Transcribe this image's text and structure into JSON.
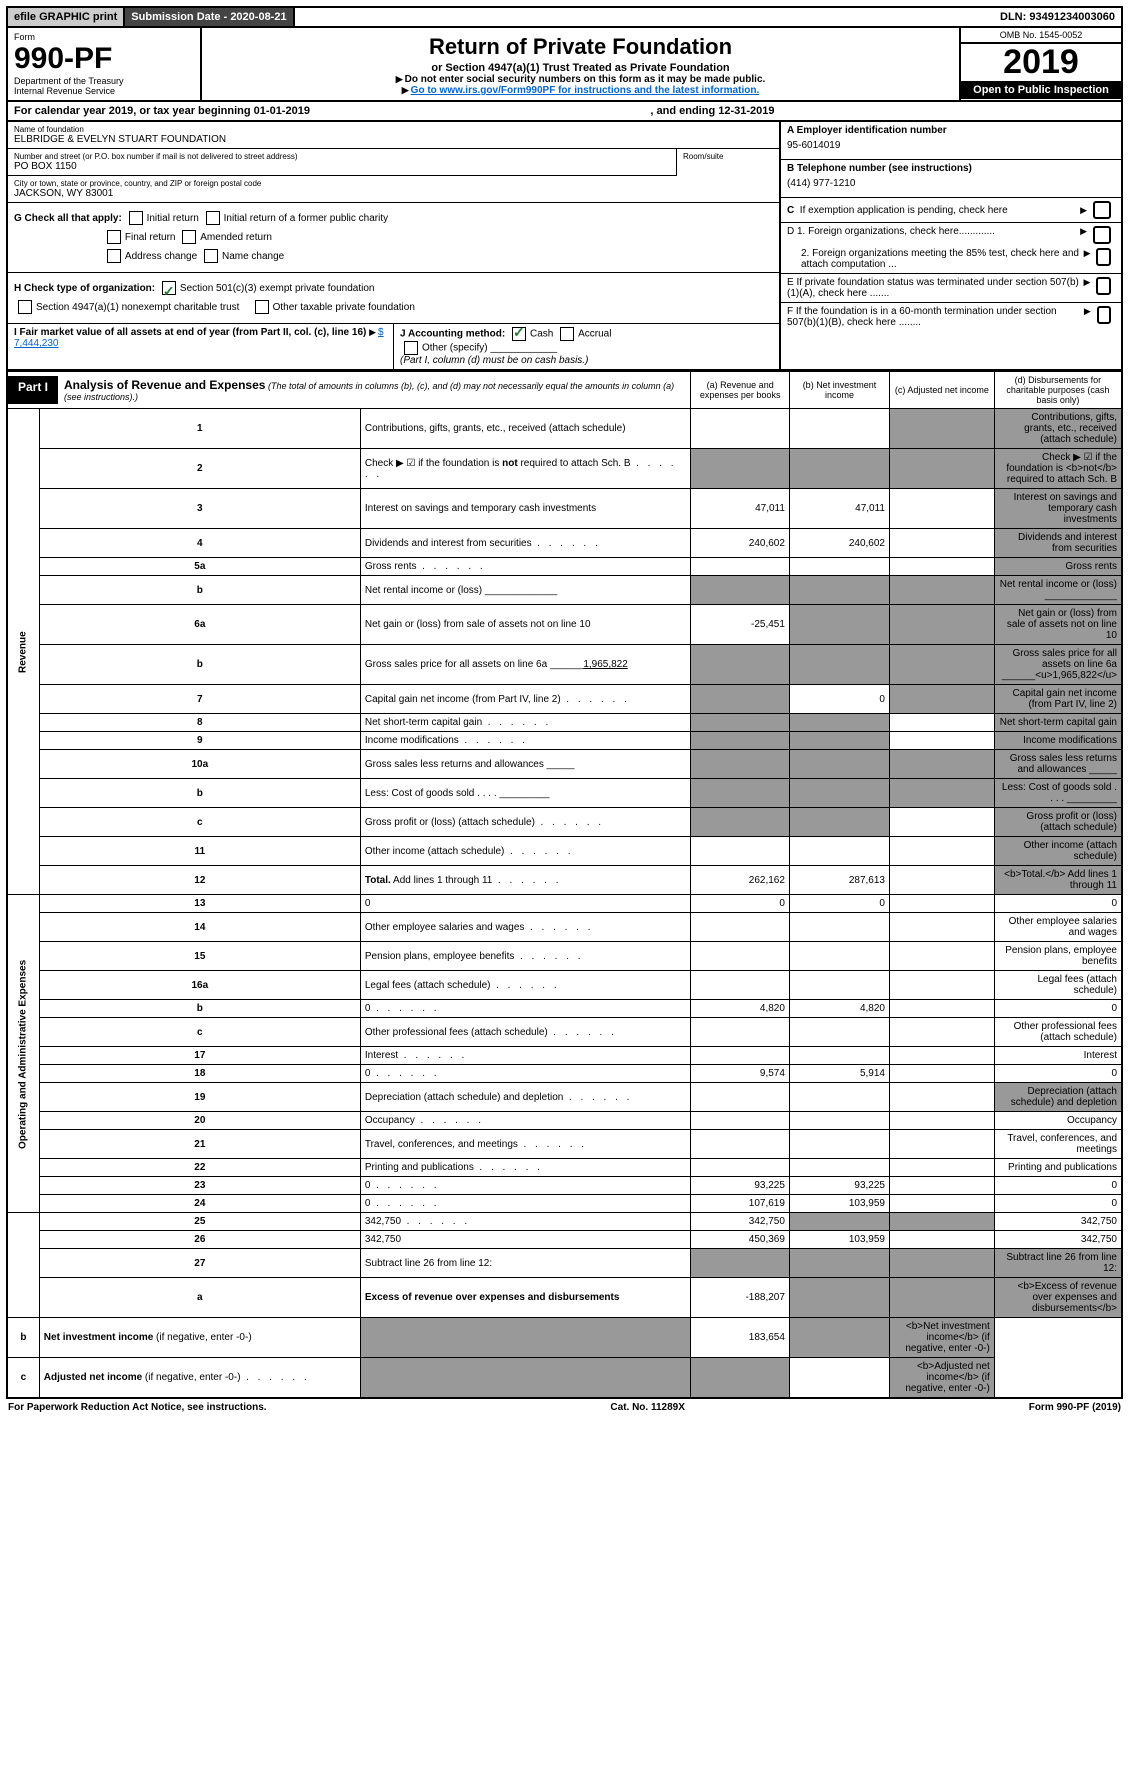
{
  "topbar": {
    "efile": "efile GRAPHIC print",
    "submission_label": "Submission Date - 2020-08-21",
    "dln": "DLN: 93491234003060"
  },
  "header": {
    "form_label": "Form",
    "form_number": "990-PF",
    "dept": "Department of the Treasury",
    "irs": "Internal Revenue Service",
    "title": "Return of Private Foundation",
    "subtitle": "or Section 4947(a)(1) Trust Treated as Private Foundation",
    "warn": "Do not enter social security numbers on this form as it may be made public.",
    "goto": "Go to www.irs.gov/Form990PF for instructions and the latest information.",
    "omb": "OMB No. 1545-0052",
    "year": "2019",
    "open": "Open to Public Inspection"
  },
  "calyear": {
    "prefix": "For calendar year 2019, or tax year beginning ",
    "begin": "01-01-2019",
    "mid": ", and ending ",
    "end": "12-31-2019"
  },
  "info": {
    "name_label": "Name of foundation",
    "name": "ELBRIDGE & EVELYN STUART FOUNDATION",
    "addr_label": "Number and street (or P.O. box number if mail is not delivered to street address)",
    "addr": "PO BOX 1150",
    "room_label": "Room/suite",
    "city_label": "City or town, state or province, country, and ZIP or foreign postal code",
    "city": "JACKSON, WY  83001",
    "a_label": "A Employer identification number",
    "a_val": "95-6014019",
    "b_label": "B Telephone number (see instructions)",
    "b_val": "(414) 977-1210",
    "c_label": "C  If exemption application is pending, check here",
    "d1": "D 1. Foreign organizations, check here.............",
    "d2": "2. Foreign organizations meeting the 85% test, check here and attach computation ...",
    "e_label": "E  If private foundation status was terminated under section 507(b)(1)(A), check here .......",
    "f_label": "F  If the foundation is in a 60-month termination under section 507(b)(1)(B), check here ........"
  },
  "checks": {
    "g_label": "G Check all that apply:",
    "g1": "Initial return",
    "g2": "Initial return of a former public charity",
    "g3": "Final return",
    "g4": "Amended return",
    "g5": "Address change",
    "g6": "Name change",
    "h_label": "H Check type of organization:",
    "h1": "Section 501(c)(3) exempt private foundation",
    "h2": "Section 4947(a)(1) nonexempt charitable trust",
    "h3": "Other taxable private foundation",
    "i_label": "I Fair market value of all assets at end of year (from Part II, col. (c), line 16)",
    "i_val": "$  7,444,230",
    "j_label": "J Accounting method:",
    "j1": "Cash",
    "j2": "Accrual",
    "j3": "Other (specify)",
    "j_note": "(Part I, column (d) must be on cash basis.)"
  },
  "part1": {
    "label": "Part I",
    "title": "Analysis of Revenue and Expenses",
    "note": "(The total of amounts in columns (b), (c), and (d) may not necessarily equal the amounts in column (a) (see instructions).)",
    "col_a": "(a)   Revenue and expenses per books",
    "col_b": "(b)  Net investment income",
    "col_c": "(c)  Adjusted net income",
    "col_d": "(d)  Disbursements for charitable purposes (cash basis only)"
  },
  "sidebars": {
    "rev": "Revenue",
    "exp": "Operating and Administrative Expenses"
  },
  "rows": [
    {
      "n": "1",
      "d": "Contributions, gifts, grants, etc., received (attach schedule)",
      "a": "",
      "b": "",
      "cg": true,
      "dg": true
    },
    {
      "n": "2",
      "d": "Check ▶ ☑ if the foundation is <b>not</b> required to attach Sch. B",
      "ag": true,
      "bg": true,
      "cg": true,
      "dg": true,
      "dots": true
    },
    {
      "n": "3",
      "d": "Interest on savings and temporary cash investments",
      "a": "47,011",
      "b": "47,011",
      "cg": false,
      "dg": true
    },
    {
      "n": "4",
      "d": "Dividends and interest from securities",
      "a": "240,602",
      "b": "240,602",
      "cg": false,
      "dg": true,
      "dots": true
    },
    {
      "n": "5a",
      "d": "Gross rents",
      "a": "",
      "b": "",
      "cg": false,
      "dg": true,
      "dots": true
    },
    {
      "n": "b",
      "d": "Net rental income or (loss)  _____________",
      "ag": true,
      "bg": true,
      "cg": true,
      "dg": true
    },
    {
      "n": "6a",
      "d": "Net gain or (loss) from sale of assets not on line 10",
      "a": "-25,451",
      "bg": true,
      "cg": true,
      "dg": true
    },
    {
      "n": "b",
      "d": "Gross sales price for all assets on line 6a ______<u>1,965,822</u>",
      "ag": true,
      "bg": true,
      "cg": true,
      "dg": true
    },
    {
      "n": "7",
      "d": "Capital gain net income (from Part IV, line 2)",
      "ag": true,
      "b": "0",
      "cg": true,
      "dg": true,
      "dots": true
    },
    {
      "n": "8",
      "d": "Net short-term capital gain",
      "ag": true,
      "bg": true,
      "cg": false,
      "dg": true,
      "dots": true
    },
    {
      "n": "9",
      "d": "Income modifications",
      "ag": true,
      "bg": true,
      "cg": false,
      "dg": true,
      "dots": true
    },
    {
      "n": "10a",
      "d": "Gross sales less returns and allowances  _____",
      "ag": true,
      "bg": true,
      "cg": true,
      "dg": true
    },
    {
      "n": "b",
      "d": "Less: Cost of goods sold    .  .  .  .   _________",
      "ag": true,
      "bg": true,
      "cg": true,
      "dg": true
    },
    {
      "n": "c",
      "d": "Gross profit or (loss) (attach schedule)",
      "ag": true,
      "bg": true,
      "cg": false,
      "dg": true,
      "dots": true
    },
    {
      "n": "11",
      "d": "Other income (attach schedule)",
      "a": "",
      "b": "",
      "cg": false,
      "dg": true,
      "dots": true
    },
    {
      "n": "12",
      "d": "<b>Total.</b> Add lines 1 through 11",
      "a": "262,162",
      "b": "287,613",
      "cg": false,
      "dg": true,
      "dots": true
    },
    {
      "n": "13",
      "d": "0",
      "a": "0",
      "b": "0",
      "c": ""
    },
    {
      "n": "14",
      "d": "Other employee salaries and wages",
      "dots": true
    },
    {
      "n": "15",
      "d": "Pension plans, employee benefits",
      "dots": true
    },
    {
      "n": "16a",
      "d": "Legal fees (attach schedule)",
      "dots": true
    },
    {
      "n": "b",
      "d": "0",
      "a": "4,820",
      "b": "4,820",
      "c": "",
      "dots": true
    },
    {
      "n": "c",
      "d": "Other professional fees (attach schedule)",
      "dots": true
    },
    {
      "n": "17",
      "d": "Interest",
      "dots": true
    },
    {
      "n": "18",
      "d": "0",
      "a": "9,574",
      "b": "5,914",
      "c": "",
      "dots": true
    },
    {
      "n": "19",
      "d": "Depreciation (attach schedule) and depletion",
      "dg": true,
      "dots": true
    },
    {
      "n": "20",
      "d": "Occupancy",
      "dots": true
    },
    {
      "n": "21",
      "d": "Travel, conferences, and meetings",
      "dots": true
    },
    {
      "n": "22",
      "d": "Printing and publications",
      "dots": true
    },
    {
      "n": "23",
      "d": "0",
      "a": "93,225",
      "b": "93,225",
      "c": "",
      "dots": true
    },
    {
      "n": "24",
      "d": "0",
      "a": "107,619",
      "b": "103,959",
      "c": "",
      "dots": true
    },
    {
      "n": "25",
      "d": "342,750",
      "a": "342,750",
      "bg": true,
      "cg": true,
      "dots": true
    },
    {
      "n": "26",
      "d": "342,750",
      "a": "450,369",
      "b": "103,959",
      "c": ""
    },
    {
      "n": "27",
      "d": "Subtract line 26 from line 12:",
      "ag": true,
      "bg": true,
      "cg": true,
      "dg": true
    },
    {
      "n": "a",
      "d": "<b>Excess of revenue over expenses and disbursements</b>",
      "a": "-188,207",
      "bg": true,
      "cg": true,
      "dg": true
    },
    {
      "n": "b",
      "d": "<b>Net investment income</b> (if negative, enter -0-)",
      "ag": true,
      "b": "183,654",
      "cg": true,
      "dg": true
    },
    {
      "n": "c",
      "d": "<b>Adjusted net income</b> (if negative, enter -0-)",
      "ag": true,
      "bg": true,
      "c": "",
      "dg": true,
      "dots": true
    }
  ],
  "footer": {
    "left": "For Paperwork Reduction Act Notice, see instructions.",
    "mid": "Cat. No. 11289X",
    "right": "Form 990-PF (2019)"
  }
}
